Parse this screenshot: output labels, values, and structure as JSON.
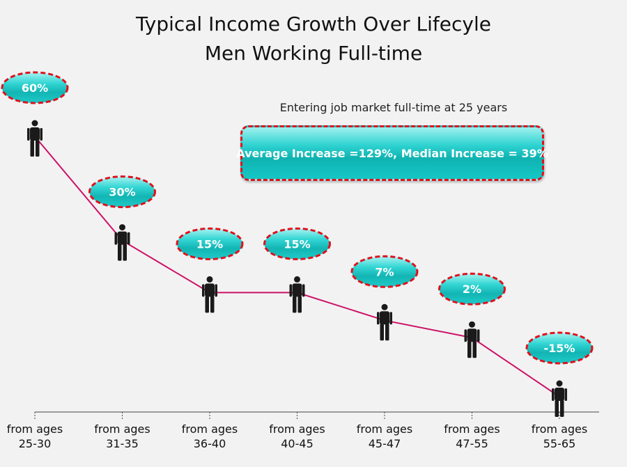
{
  "title": [
    "Typical Income Growth Over Lifecyle",
    "Men Working Full-time"
  ],
  "note": "Entering job market full-time at 25 years",
  "callout": "Average Increase =129%, Median Increase = 39%",
  "colors": {
    "line": "#cc1166",
    "bubble_fill": "#20c6c4",
    "bubble_border": "#e0101c",
    "person": "#1a1a1a"
  },
  "chart_data": {
    "type": "line",
    "title": "Typical Income Growth Over Lifecyle",
    "subtitle": "Men Working Full-time",
    "categories": [
      [
        "from ages",
        "25-30"
      ],
      [
        "from ages",
        "31-35"
      ],
      [
        "from ages",
        "36-40"
      ],
      [
        "from ages",
        "40-45"
      ],
      [
        "from ages",
        "45-47"
      ],
      [
        "from ages",
        "47-55"
      ],
      [
        "from ages",
        "55-65"
      ]
    ],
    "values": [
      60,
      30,
      15,
      15,
      7,
      2,
      -15
    ],
    "data_labels": [
      "60%",
      "30%",
      "15%",
      "15%",
      "7%",
      "2%",
      "-15%"
    ],
    "ylim": [
      -15,
      60
    ],
    "grid": false
  }
}
